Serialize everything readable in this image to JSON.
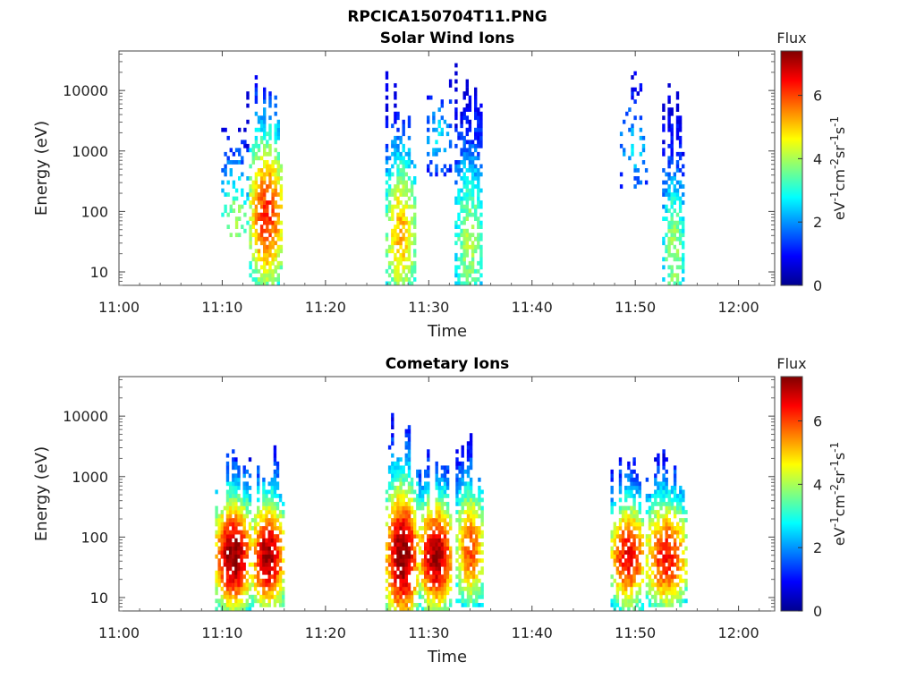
{
  "figure": {
    "filename": "RPCICA150704T11.PNG"
  },
  "panels": [
    {
      "title": "Solar Wind Ions",
      "xlabel": "Time",
      "ylabel": "Energy (eV)",
      "colorbar": {
        "title": "Flux",
        "units": "eV-1cm-2sr-1s-1",
        "ticks": [
          "0",
          "2",
          "4",
          "6"
        ]
      }
    },
    {
      "title": "Cometary Ions",
      "xlabel": "Time",
      "ylabel": "Energy (eV)",
      "colorbar": {
        "title": "Flux",
        "units": "eV-1cm-2sr-1s-1",
        "ticks": [
          "0",
          "2",
          "4",
          "6"
        ]
      }
    }
  ],
  "chart_data": [
    {
      "type": "heatmap",
      "title": "Solar Wind Ions",
      "xlabel": "Time",
      "ylabel": "Energy (eV)",
      "x_ticks": [
        "11:00",
        "11:10",
        "11:20",
        "11:30",
        "11:40",
        "11:50",
        "12:00"
      ],
      "y_ticks": [
        "10",
        "100",
        "1000",
        "10000"
      ],
      "y_scale": "log",
      "xlim_minutes_after_11_00": [
        0,
        63.5
      ],
      "ylim_eV": [
        6,
        45000
      ],
      "colorbar": {
        "label": "Flux",
        "units": "eV-1cm-2sr-1s-1",
        "range": [
          0,
          7.4
        ],
        "colormap": "jet"
      },
      "bursts": [
        {
          "t_start": 9.9,
          "t_end": 12.4,
          "e_min": 40,
          "e_max": 16000,
          "peak_flux": 3.5,
          "peak_e": 60,
          "density": 0.35
        },
        {
          "t_start": 12.6,
          "t_end": 15.8,
          "e_min": 6,
          "e_max": 33000,
          "peak_flux": 5.8,
          "peak_e": 80,
          "density": 0.75
        },
        {
          "t_start": 25.8,
          "t_end": 28.6,
          "e_min": 6,
          "e_max": 22000,
          "peak_flux": 4.8,
          "peak_e": 40,
          "density": 0.75
        },
        {
          "t_start": 29.8,
          "t_end": 32.0,
          "e_min": 400,
          "e_max": 15000,
          "peak_flux": 2.2,
          "peak_e": 1500,
          "density": 0.35
        },
        {
          "t_start": 32.5,
          "t_end": 35.2,
          "e_min": 6,
          "e_max": 28000,
          "peak_flux": 3.6,
          "peak_e": 30,
          "density": 0.75
        },
        {
          "t_start": 48.5,
          "t_end": 51.0,
          "e_min": 250,
          "e_max": 22000,
          "peak_flux": 2.0,
          "peak_e": 1000,
          "density": 0.2
        },
        {
          "t_start": 52.6,
          "t_end": 54.6,
          "e_min": 6,
          "e_max": 14000,
          "peak_flux": 3.6,
          "peak_e": 20,
          "density": 0.65
        }
      ]
    },
    {
      "type": "heatmap",
      "title": "Cometary Ions",
      "xlabel": "Time",
      "ylabel": "Energy (eV)",
      "x_ticks": [
        "11:00",
        "11:10",
        "11:20",
        "11:30",
        "11:40",
        "11:50",
        "12:00"
      ],
      "y_ticks": [
        "10",
        "100",
        "1000",
        "10000"
      ],
      "y_scale": "log",
      "xlim_minutes_after_11_00": [
        0,
        63.5
      ],
      "ylim_eV": [
        6,
        45000
      ],
      "colorbar": {
        "label": "Flux",
        "units": "eV-1cm-2sr-1s-1",
        "range": [
          0,
          7.4
        ],
        "colormap": "jet"
      },
      "bursts": [
        {
          "t_start": 9.3,
          "t_end": 12.6,
          "e_min": 6,
          "e_max": 3200,
          "peak_flux": 7.0,
          "peak_e": 45,
          "density": 0.9
        },
        {
          "t_start": 12.8,
          "t_end": 15.8,
          "e_min": 8,
          "e_max": 3500,
          "peak_flux": 6.8,
          "peak_e": 45,
          "density": 0.9
        },
        {
          "t_start": 25.8,
          "t_end": 28.8,
          "e_min": 6,
          "e_max": 15000,
          "peak_flux": 7.0,
          "peak_e": 45,
          "density": 0.9
        },
        {
          "t_start": 29.0,
          "t_end": 32.2,
          "e_min": 6,
          "e_max": 3000,
          "peak_flux": 6.8,
          "peak_e": 45,
          "density": 0.9
        },
        {
          "t_start": 32.6,
          "t_end": 35.2,
          "e_min": 8,
          "e_max": 5000,
          "peak_flux": 5.5,
          "peak_e": 60,
          "density": 0.85
        },
        {
          "t_start": 47.6,
          "t_end": 50.8,
          "e_min": 6,
          "e_max": 2000,
          "peak_flux": 6.2,
          "peak_e": 45,
          "density": 0.8
        },
        {
          "t_start": 51.0,
          "t_end": 54.8,
          "e_min": 8,
          "e_max": 3600,
          "peak_flux": 6.0,
          "peak_e": 45,
          "density": 0.8
        }
      ]
    }
  ]
}
